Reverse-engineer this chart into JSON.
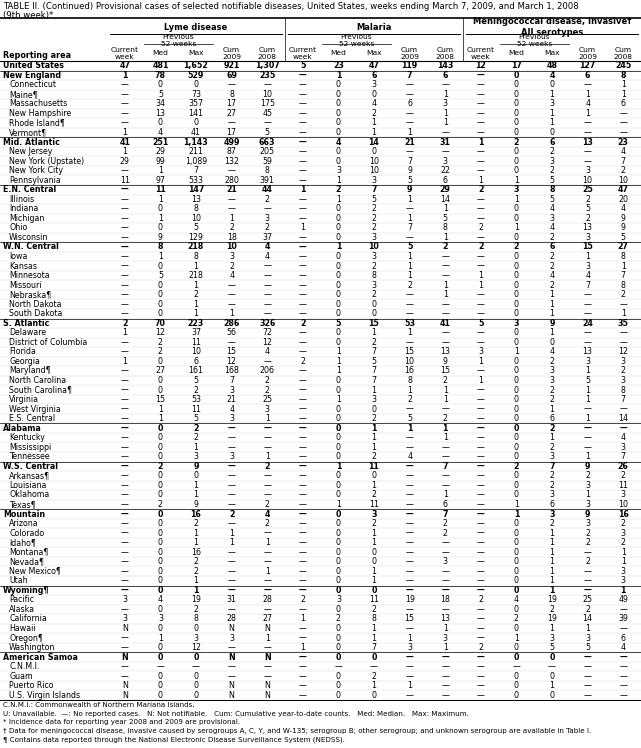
{
  "title_line1": "TABLE II. (Continued) Provisional cases of selected notifiable diseases, United States, weeks ending March 7, 2009, and March 1, 2008",
  "title_line2": "(9th week)*",
  "group_names": [
    "Lyme disease",
    "Malaria",
    "Meningococcal disease, invasive†\nAll serotypes"
  ],
  "prev52_label": "Previous\n52 weeks",
  "sub_headers": [
    "Current\nweek",
    "Med",
    "Max",
    "Cum\n2009",
    "Cum\n2008"
  ],
  "reporting_area_header": "Reporting area",
  "rows": [
    [
      "United States",
      "47",
      "481",
      "1,652",
      "921",
      "1,307",
      "5",
      "23",
      "47",
      "119",
      "143",
      "12",
      "17",
      "48",
      "127",
      "245"
    ],
    [
      "New England",
      "1",
      "78",
      "529",
      "69",
      "235",
      "—",
      "1",
      "6",
      "7",
      "6",
      "—",
      "0",
      "4",
      "6",
      "8"
    ],
    [
      "Connecticut",
      "—",
      "0",
      "0",
      "—",
      "—",
      "—",
      "0",
      "3",
      "—",
      "—",
      "—",
      "0",
      "0",
      "—",
      "1"
    ],
    [
      "Maine¶",
      "—",
      "5",
      "73",
      "8",
      "10",
      "—",
      "0",
      "0",
      "—",
      "1",
      "—",
      "0",
      "1",
      "1",
      "1"
    ],
    [
      "Massachusetts",
      "—",
      "34",
      "357",
      "17",
      "175",
      "—",
      "0",
      "4",
      "6",
      "3",
      "—",
      "0",
      "3",
      "4",
      "6"
    ],
    [
      "New Hampshire",
      "—",
      "13",
      "141",
      "27",
      "45",
      "—",
      "0",
      "2",
      "—",
      "1",
      "—",
      "0",
      "1",
      "1",
      "—"
    ],
    [
      "Rhode Island¶",
      "—",
      "0",
      "0",
      "—",
      "—",
      "—",
      "0",
      "1",
      "—",
      "1",
      "—",
      "0",
      "1",
      "—",
      "—"
    ],
    [
      "Vermont¶",
      "1",
      "4",
      "41",
      "17",
      "5",
      "—",
      "0",
      "1",
      "1",
      "—",
      "—",
      "0",
      "0",
      "—",
      "—"
    ],
    [
      "Mid. Atlantic",
      "41",
      "251",
      "1,143",
      "499",
      "663",
      "—",
      "4",
      "14",
      "21",
      "31",
      "1",
      "2",
      "6",
      "13",
      "23"
    ],
    [
      "New Jersey",
      "1",
      "29",
      "211",
      "87",
      "205",
      "—",
      "0",
      "0",
      "—",
      "—",
      "—",
      "0",
      "2",
      "—",
      "4"
    ],
    [
      "New York (Upstate)",
      "29",
      "99",
      "1,089",
      "132",
      "59",
      "—",
      "0",
      "10",
      "7",
      "3",
      "—",
      "0",
      "3",
      "—",
      "7"
    ],
    [
      "New York City",
      "—",
      "1",
      "7",
      "—",
      "8",
      "—",
      "3",
      "10",
      "9",
      "22",
      "—",
      "0",
      "2",
      "3",
      "2"
    ],
    [
      "Pennsylvania",
      "11",
      "97",
      "533",
      "280",
      "391",
      "—",
      "1",
      "3",
      "5",
      "6",
      "1",
      "1",
      "5",
      "10",
      "10"
    ],
    [
      "E.N. Central",
      "—",
      "11",
      "147",
      "21",
      "44",
      "1",
      "2",
      "7",
      "9",
      "29",
      "2",
      "3",
      "8",
      "25",
      "47"
    ],
    [
      "Illinois",
      "—",
      "1",
      "13",
      "—",
      "2",
      "—",
      "1",
      "5",
      "1",
      "14",
      "—",
      "1",
      "5",
      "2",
      "20"
    ],
    [
      "Indiana",
      "—",
      "0",
      "8",
      "—",
      "—",
      "—",
      "0",
      "2",
      "—",
      "1",
      "—",
      "0",
      "4",
      "5",
      "4"
    ],
    [
      "Michigan",
      "—",
      "1",
      "10",
      "1",
      "3",
      "—",
      "0",
      "2",
      "1",
      "5",
      "—",
      "0",
      "3",
      "2",
      "9"
    ],
    [
      "Ohio",
      "—",
      "0",
      "5",
      "2",
      "2",
      "1",
      "0",
      "2",
      "7",
      "8",
      "2",
      "1",
      "4",
      "13",
      "9"
    ],
    [
      "Wisconsin",
      "—",
      "9",
      "129",
      "18",
      "37",
      "—",
      "0",
      "3",
      "—",
      "1",
      "—",
      "0",
      "2",
      "3",
      "5"
    ],
    [
      "W.N. Central",
      "—",
      "8",
      "218",
      "10",
      "4",
      "—",
      "1",
      "10",
      "5",
      "2",
      "2",
      "2",
      "6",
      "15",
      "27"
    ],
    [
      "Iowa",
      "—",
      "1",
      "8",
      "3",
      "4",
      "—",
      "0",
      "3",
      "1",
      "—",
      "—",
      "0",
      "2",
      "1",
      "8"
    ],
    [
      "Kansas",
      "—",
      "0",
      "1",
      "2",
      "—",
      "—",
      "0",
      "2",
      "1",
      "—",
      "—",
      "0",
      "2",
      "3",
      "1"
    ],
    [
      "Minnesota",
      "—",
      "5",
      "218",
      "4",
      "—",
      "—",
      "0",
      "8",
      "1",
      "—",
      "1",
      "0",
      "4",
      "4",
      "7"
    ],
    [
      "Missouri",
      "—",
      "0",
      "1",
      "—",
      "—",
      "—",
      "0",
      "3",
      "2",
      "1",
      "1",
      "0",
      "2",
      "7",
      "8"
    ],
    [
      "Nebraska¶",
      "—",
      "0",
      "2",
      "—",
      "—",
      "—",
      "0",
      "2",
      "—",
      "1",
      "—",
      "0",
      "1",
      "—",
      "2"
    ],
    [
      "North Dakota",
      "—",
      "0",
      "1",
      "—",
      "—",
      "—",
      "0",
      "0",
      "—",
      "—",
      "—",
      "0",
      "1",
      "—",
      "—"
    ],
    [
      "South Dakota",
      "—",
      "0",
      "1",
      "1",
      "—",
      "—",
      "0",
      "0",
      "—",
      "—",
      "—",
      "0",
      "1",
      "—",
      "1"
    ],
    [
      "S. Atlantic",
      "2",
      "70",
      "223",
      "286",
      "326",
      "2",
      "5",
      "15",
      "53",
      "41",
      "5",
      "3",
      "9",
      "24",
      "35"
    ],
    [
      "Delaware",
      "1",
      "12",
      "37",
      "56",
      "72",
      "—",
      "0",
      "1",
      "1",
      "—",
      "—",
      "0",
      "1",
      "—",
      "—"
    ],
    [
      "District of Columbia",
      "—",
      "2",
      "11",
      "—",
      "12",
      "—",
      "0",
      "2",
      "—",
      "—",
      "—",
      "0",
      "0",
      "—",
      "—"
    ],
    [
      "Florida",
      "—",
      "2",
      "10",
      "15",
      "4",
      "—",
      "1",
      "7",
      "15",
      "13",
      "3",
      "1",
      "4",
      "13",
      "12"
    ],
    [
      "Georgia",
      "1",
      "0",
      "6",
      "12",
      "—",
      "2",
      "1",
      "5",
      "10",
      "9",
      "1",
      "0",
      "2",
      "3",
      "3"
    ],
    [
      "Maryland¶",
      "—",
      "27",
      "161",
      "168",
      "206",
      "—",
      "1",
      "7",
      "16",
      "15",
      "—",
      "0",
      "3",
      "1",
      "2"
    ],
    [
      "North Carolina",
      "—",
      "0",
      "5",
      "7",
      "2",
      "—",
      "0",
      "7",
      "8",
      "2",
      "1",
      "0",
      "3",
      "5",
      "3"
    ],
    [
      "South Carolina¶",
      "—",
      "0",
      "2",
      "3",
      "2",
      "—",
      "0",
      "1",
      "1",
      "1",
      "—",
      "0",
      "2",
      "1",
      "8"
    ],
    [
      "Virginia",
      "—",
      "15",
      "53",
      "21",
      "25",
      "—",
      "1",
      "3",
      "2",
      "1",
      "—",
      "0",
      "2",
      "1",
      "7"
    ],
    [
      "West Virginia",
      "—",
      "1",
      "11",
      "4",
      "3",
      "—",
      "0",
      "0",
      "—",
      "—",
      "—",
      "0",
      "1",
      "—",
      "—"
    ],
    [
      "E.S. Central",
      "—",
      "1",
      "5",
      "3",
      "1",
      "—",
      "0",
      "2",
      "5",
      "2",
      "—",
      "0",
      "6",
      "1",
      "14"
    ],
    [
      "Alabama",
      "—",
      "0",
      "2",
      "—",
      "—",
      "—",
      "0",
      "1",
      "1",
      "1",
      "—",
      "0",
      "2",
      "—",
      "—"
    ],
    [
      "Kentucky",
      "—",
      "0",
      "2",
      "—",
      "—",
      "—",
      "0",
      "1",
      "—",
      "1",
      "—",
      "0",
      "1",
      "—",
      "4"
    ],
    [
      "Mississippi",
      "—",
      "0",
      "1",
      "—",
      "—",
      "—",
      "0",
      "1",
      "—",
      "—",
      "—",
      "0",
      "2",
      "—",
      "3"
    ],
    [
      "Tennessee",
      "—",
      "0",
      "3",
      "3",
      "1",
      "—",
      "0",
      "2",
      "4",
      "—",
      "—",
      "0",
      "3",
      "1",
      "7"
    ],
    [
      "W.S. Central",
      "—",
      "2",
      "9",
      "—",
      "2",
      "—",
      "1",
      "11",
      "—",
      "7",
      "—",
      "2",
      "7",
      "9",
      "26"
    ],
    [
      "Arkansas¶",
      "—",
      "0",
      "0",
      "—",
      "—",
      "—",
      "0",
      "0",
      "—",
      "—",
      "—",
      "0",
      "2",
      "2",
      "2"
    ],
    [
      "Louisiana",
      "—",
      "0",
      "1",
      "—",
      "—",
      "—",
      "0",
      "1",
      "—",
      "—",
      "—",
      "0",
      "2",
      "3",
      "11"
    ],
    [
      "Oklahoma",
      "—",
      "0",
      "1",
      "—",
      "—",
      "—",
      "0",
      "2",
      "—",
      "1",
      "—",
      "0",
      "3",
      "1",
      "3"
    ],
    [
      "Texas¶",
      "—",
      "2",
      "9",
      "—",
      "2",
      "—",
      "1",
      "11",
      "—",
      "6",
      "—",
      "1",
      "6",
      "3",
      "10"
    ],
    [
      "Mountain",
      "—",
      "0",
      "16",
      "2",
      "4",
      "—",
      "0",
      "3",
      "—",
      "7",
      "—",
      "1",
      "3",
      "9",
      "16"
    ],
    [
      "Arizona",
      "—",
      "0",
      "2",
      "—",
      "2",
      "—",
      "0",
      "2",
      "—",
      "2",
      "—",
      "0",
      "2",
      "3",
      "2"
    ],
    [
      "Colorado",
      "—",
      "0",
      "1",
      "1",
      "—",
      "—",
      "0",
      "1",
      "—",
      "2",
      "—",
      "0",
      "1",
      "2",
      "3"
    ],
    [
      "Idaho¶",
      "—",
      "0",
      "1",
      "1",
      "1",
      "—",
      "0",
      "1",
      "—",
      "—",
      "—",
      "0",
      "1",
      "2",
      "2"
    ],
    [
      "Montana¶",
      "—",
      "0",
      "16",
      "—",
      "—",
      "—",
      "0",
      "0",
      "—",
      "—",
      "—",
      "0",
      "1",
      "—",
      "1"
    ],
    [
      "Nevada¶",
      "—",
      "0",
      "2",
      "—",
      "—",
      "—",
      "0",
      "0",
      "—",
      "3",
      "—",
      "0",
      "1",
      "2",
      "1"
    ],
    [
      "New Mexico¶",
      "—",
      "0",
      "2",
      "—",
      "1",
      "—",
      "0",
      "1",
      "—",
      "—",
      "—",
      "0",
      "1",
      "—",
      "3"
    ],
    [
      "Utah",
      "—",
      "0",
      "1",
      "—",
      "—",
      "—",
      "0",
      "1",
      "—",
      "—",
      "—",
      "0",
      "1",
      "—",
      "3"
    ],
    [
      "Wyoming¶",
      "—",
      "0",
      "1",
      "—",
      "—",
      "—",
      "0",
      "0",
      "—",
      "—",
      "—",
      "0",
      "1",
      "—",
      "1"
    ],
    [
      "Pacific",
      "3",
      "4",
      "19",
      "31",
      "28",
      "2",
      "3",
      "11",
      "19",
      "18",
      "2",
      "4",
      "19",
      "25",
      "49"
    ],
    [
      "Alaska",
      "—",
      "0",
      "2",
      "—",
      "—",
      "—",
      "0",
      "2",
      "—",
      "—",
      "—",
      "0",
      "2",
      "2",
      "—"
    ],
    [
      "California",
      "3",
      "3",
      "8",
      "28",
      "27",
      "1",
      "2",
      "8",
      "15",
      "13",
      "—",
      "2",
      "19",
      "14",
      "39"
    ],
    [
      "Hawaii",
      "N",
      "0",
      "0",
      "N",
      "N",
      "—",
      "0",
      "1",
      "—",
      "1",
      "—",
      "0",
      "1",
      "1",
      "—"
    ],
    [
      "Oregon¶",
      "—",
      "1",
      "3",
      "3",
      "1",
      "—",
      "0",
      "1",
      "1",
      "3",
      "—",
      "1",
      "3",
      "3",
      "6"
    ],
    [
      "Washington",
      "—",
      "0",
      "12",
      "—",
      "—",
      "1",
      "0",
      "7",
      "3",
      "1",
      "2",
      "0",
      "5",
      "5",
      "4"
    ],
    [
      "American Samoa",
      "N",
      "0",
      "0",
      "N",
      "N",
      "—",
      "0",
      "0",
      "—",
      "—",
      "—",
      "0",
      "0",
      "—",
      "—"
    ],
    [
      "C.N.M.I.",
      "—",
      "—",
      "—",
      "—",
      "—",
      "—",
      "—",
      "—",
      "—",
      "—",
      "—",
      "—",
      "—",
      "—",
      "—"
    ],
    [
      "Guam",
      "—",
      "0",
      "0",
      "—",
      "—",
      "—",
      "0",
      "2",
      "—",
      "—",
      "—",
      "0",
      "0",
      "—",
      "—"
    ],
    [
      "Puerto Rico",
      "N",
      "0",
      "0",
      "N",
      "N",
      "—",
      "0",
      "1",
      "1",
      "—",
      "—",
      "0",
      "1",
      "—",
      "—"
    ],
    [
      "U.S. Virgin Islands",
      "N",
      "0",
      "0",
      "N",
      "N",
      "—",
      "0",
      "0",
      "—",
      "—",
      "—",
      "0",
      "0",
      "—",
      "—"
    ]
  ],
  "bold_rows": [
    0,
    1,
    8,
    13,
    19,
    27,
    38,
    42,
    47,
    55,
    62
  ],
  "footnotes": [
    "C.N.M.I.: Commonwealth of Northern Mariana Islands.",
    "U: Unavailable.  —: No reported cases.   N: Not notifiable.   Cum: Cumulative year-to-date counts.   Med: Median.   Max: Maximum.",
    "* Incidence data for reporting year 2008 and 2009 are provisional.",
    "† Data for meningococcal disease, invasive caused by serogroups A, C, Y, and W-135; serogroup B; other serogroup; and unknown serogroup are available in Table I.",
    "¶ Contains data reported through the National Electronic Disease Surveillance System (NEDSS)."
  ]
}
